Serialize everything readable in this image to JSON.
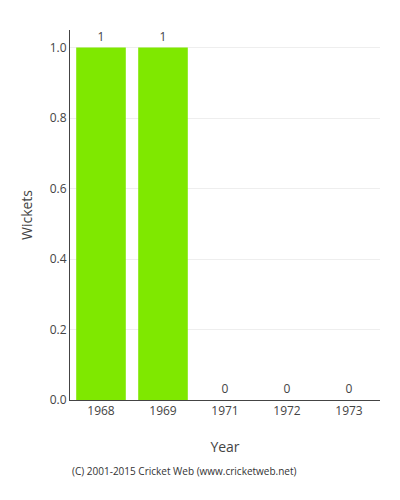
{
  "chart_data": {
    "type": "bar",
    "categories": [
      "1968",
      "1969",
      "1971",
      "1972",
      "1973"
    ],
    "values": [
      1,
      1,
      0,
      0,
      0
    ],
    "color": "#7FE800",
    "xlabel": "Year",
    "ylabel": "Wickets",
    "ylim": [
      0,
      1.05
    ],
    "yticks": [
      {
        "value": 0,
        "label": "0.0"
      },
      0.2,
      0.4,
      0.6,
      0.8,
      {
        "value": 1,
        "label": "1.0"
      }
    ],
    "grid": true,
    "data_labels": true,
    "annotations": [
      "(C) 2001-2015 Cricket Web (www.cricketweb.net)"
    ]
  }
}
